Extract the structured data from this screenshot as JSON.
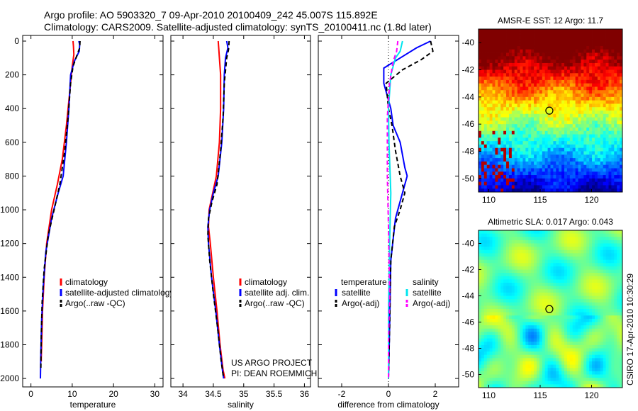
{
  "header": {
    "line1": "Argo profile: AO 5903320_7 09-Apr-2010 20100409_242 45.007S 115.892E",
    "line2": "Climatology: CARS2009. Satellite-adjusted climatology: synTS_20100411.nc (1.8d later)"
  },
  "footer": {
    "project": "US ARGO PROJECT",
    "pi": "PI: DEAN ROEMMICH",
    "credit": "CSIRO 17-Apr-2010 10:30:29"
  },
  "colors": {
    "climatology": "#ff0000",
    "satellite": "#0000ff",
    "argo": "#000000",
    "sal_satellite": "#00e5ee",
    "sal_argo": "#ff00ff"
  },
  "chart_data": [
    {
      "type": "line",
      "id": "temperature",
      "xlabel": "temperature",
      "xlim": [
        -2,
        32
      ],
      "ylim": [
        0,
        2050
      ],
      "xticks": [
        0,
        10,
        20,
        30
      ],
      "yticks": [
        0,
        200,
        400,
        600,
        800,
        1000,
        1200,
        1400,
        1600,
        1800,
        2000
      ],
      "legend": [
        "climatology",
        "satellite-adjusted climatology",
        "Argo(..raw -QC)"
      ],
      "series": [
        {
          "name": "climatology",
          "color": "#ff0000",
          "dash": "",
          "x": [
            10.2,
            10.3,
            10.4,
            10.0,
            9.4,
            8.6,
            7.6,
            6.4,
            5.0,
            3.8,
            3.2,
            2.8,
            2.6,
            2.5,
            2.5
          ],
          "y": [
            0,
            30,
            80,
            150,
            300,
            500,
            700,
            850,
            1000,
            1200,
            1400,
            1600,
            1800,
            1880,
            1900
          ]
        },
        {
          "name": "satellite-adjusted climatology",
          "color": "#0000ff",
          "dash": "",
          "x": [
            11.6,
            11.8,
            11.7,
            10.5,
            9.6,
            9.2,
            8.6,
            7.8,
            6.6,
            5.0,
            3.6,
            3.0,
            2.6,
            2.4,
            2.3
          ],
          "y": [
            0,
            20,
            60,
            120,
            200,
            400,
            600,
            800,
            900,
            1050,
            1250,
            1450,
            1650,
            1850,
            2000
          ]
        },
        {
          "name": "Argo(..raw -QC)",
          "color": "#000000",
          "dash": "6,4",
          "x": [
            11.9,
            11.8,
            11.2,
            10.2,
            9.6,
            9.0,
            8.2,
            7.0,
            5.6,
            4.2,
            3.2,
            2.7,
            2.5,
            2.4
          ],
          "y": [
            0,
            40,
            80,
            150,
            250,
            450,
            650,
            850,
            1000,
            1150,
            1350,
            1550,
            1750,
            1950
          ]
        }
      ]
    },
    {
      "type": "line",
      "id": "salinity",
      "xlabel": "salinity",
      "xlim": [
        33.8,
        36.1
      ],
      "ylim": [
        0,
        2050
      ],
      "xticks": [
        34,
        34.5,
        35,
        35.5,
        36
      ],
      "yticks": [
        0,
        200,
        400,
        600,
        800,
        1000,
        1200,
        1400,
        1600,
        1800,
        2000
      ],
      "legend": [
        "climatology",
        "satellite adj. clim.",
        "Argo(..raw -QC)"
      ],
      "series": [
        {
          "name": "climatology",
          "color": "#ff0000",
          "dash": "",
          "x": [
            34.58,
            34.59,
            34.6,
            34.62,
            34.62,
            34.6,
            34.55,
            34.49,
            34.43,
            34.42,
            34.45,
            34.5,
            34.56,
            34.61,
            34.66,
            34.69
          ],
          "y": [
            0,
            50,
            100,
            200,
            400,
            600,
            800,
            900,
            1000,
            1100,
            1200,
            1400,
            1600,
            1800,
            1950,
            2000
          ]
        },
        {
          "name": "satellite adj. clim.",
          "color": "#0000ff",
          "dash": "",
          "x": [
            34.72,
            34.74,
            34.7,
            34.68,
            34.67,
            34.64,
            34.58,
            34.5,
            34.44,
            34.41,
            34.42,
            34.47,
            34.54,
            34.6,
            34.65,
            34.67
          ],
          "y": [
            0,
            40,
            100,
            200,
            400,
            600,
            800,
            900,
            1000,
            1100,
            1200,
            1400,
            1600,
            1800,
            1950,
            2000
          ]
        },
        {
          "name": "Argo(..raw -QC)",
          "color": "#000000",
          "dash": "6,4",
          "x": [
            34.76,
            34.75,
            34.72,
            34.68,
            34.66,
            34.62,
            34.56,
            34.48,
            34.42,
            34.41,
            34.44,
            34.5,
            34.57,
            34.63,
            34.67
          ],
          "y": [
            0,
            50,
            100,
            250,
            450,
            650,
            850,
            950,
            1050,
            1150,
            1300,
            1500,
            1700,
            1900,
            2000
          ]
        }
      ]
    },
    {
      "type": "line",
      "id": "difference",
      "xlabel": "difference from climatology",
      "xlim": [
        -3,
        3
      ],
      "ylim": [
        0,
        2050
      ],
      "xticks": [
        -2,
        0,
        2
      ],
      "yticks": [
        0,
        200,
        400,
        600,
        800,
        1000,
        1200,
        1400,
        1600,
        1800,
        2000
      ],
      "legend_groups": [
        {
          "title": "temperature",
          "items": [
            "satellite",
            "Argo(-adj)"
          ]
        },
        {
          "title": "salinity",
          "items": [
            "satellite",
            "Argo(-adj)"
          ]
        }
      ],
      "series": [
        {
          "name": "temperature satellite",
          "color": "#0000ff",
          "dash": "",
          "x": [
            1.8,
            1.2,
            0.5,
            -0.2,
            -0.2,
            0.1,
            0.2,
            0.5,
            0.7,
            0.8,
            0.6,
            0.3,
            0.1,
            0.05,
            0.0
          ],
          "y": [
            0,
            40,
            100,
            160,
            250,
            400,
            500,
            600,
            750,
            800,
            900,
            1050,
            1300,
            1700,
            2000
          ]
        },
        {
          "name": "temperature Argo(-adj)",
          "color": "#000000",
          "dash": "6,4",
          "x": [
            1.8,
            1.9,
            1.4,
            0.6,
            -0.1,
            0.0,
            0.15,
            0.3,
            0.5,
            0.7,
            0.5,
            0.25,
            0.1,
            0.05,
            0.0
          ],
          "y": [
            0,
            60,
            110,
            170,
            250,
            400,
            500,
            650,
            800,
            900,
            1000,
            1100,
            1300,
            1700,
            2000
          ]
        },
        {
          "name": "salinity satellite",
          "color": "#00e5ee",
          "dash": "",
          "x": [
            0.6,
            0.5,
            0.3,
            0.1,
            0.0,
            0.02,
            0.1,
            0.05,
            0.0,
            0.0
          ],
          "y": [
            0,
            60,
            100,
            200,
            400,
            600,
            900,
            1200,
            1600,
            2000
          ]
        },
        {
          "name": "salinity Argo(-adj)",
          "color": "#ff00ff",
          "dash": "6,4",
          "x": [
            0.4,
            0.35,
            0.2,
            0.05,
            -0.05,
            -0.05,
            0.0,
            0.05,
            0.0,
            0.0
          ],
          "y": [
            0,
            60,
            120,
            250,
            450,
            800,
            1100,
            1500,
            1800,
            2000
          ]
        }
      ]
    },
    {
      "type": "heatmap",
      "id": "sst",
      "title": "AMSR-E SST: 12 Argo: 11.7",
      "xlim": [
        109,
        123
      ],
      "ylim": [
        -51,
        -39
      ],
      "xticks": [
        110,
        115,
        120
      ],
      "yticks": [
        -40,
        -42,
        -44,
        -46,
        -48,
        -50
      ],
      "marker": {
        "lon": 115.892,
        "lat": -45.007
      }
    },
    {
      "type": "heatmap",
      "id": "sla",
      "title": "Altimetric SLA: 0.017 Argo: 0.043",
      "xlim": [
        109,
        123
      ],
      "ylim": [
        -51,
        -39
      ],
      "xticks": [
        110,
        115,
        120
      ],
      "yticks": [
        -40,
        -42,
        -44,
        -46,
        -48,
        -50
      ],
      "marker": {
        "lon": 115.892,
        "lat": -45.007
      }
    }
  ]
}
